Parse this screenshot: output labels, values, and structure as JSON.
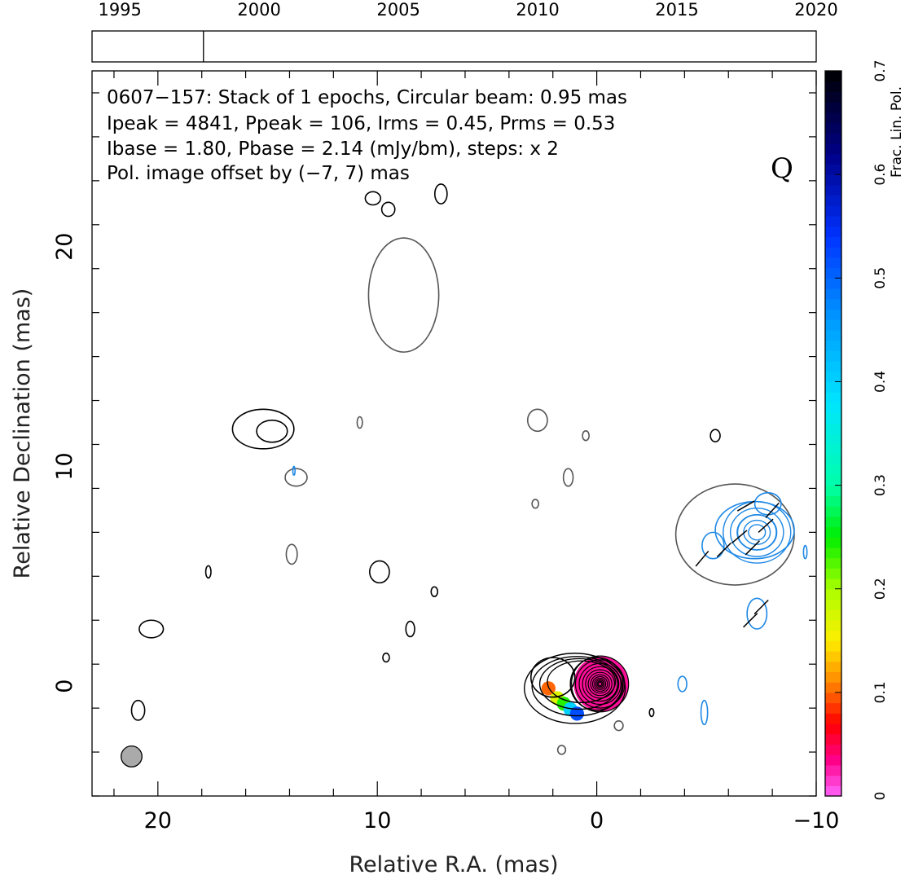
{
  "chart_data": {
    "type": "contour",
    "source": "0607−157",
    "info_lines": [
      "0607−157: Stack of 1 epochs, Circular beam: 0.95 mas",
      "Ipeak = 4841, Ppeak = 106, Irms = 0.45, Prms = 0.53",
      "Ibase = 1.80, Pbase = 2.14 (mJy/bm), steps: x 2"
    ],
    "offset_note": "Pol. image offset by (−7, 7) mas",
    "offset_note_color": "#1e88e5",
    "corner_label": "Q",
    "xlabel": "Relative R.A. (mas)",
    "ylabel": "Relative Declination (mas)",
    "x_range": [
      23,
      -10
    ],
    "y_range": [
      -5,
      28
    ],
    "x_ticks": [
      20,
      10,
      0,
      -10
    ],
    "x_tick_labels": [
      "20",
      "10",
      "0",
      "−10"
    ],
    "y_ticks": [
      0,
      10,
      20
    ],
    "y_tick_labels": [
      "0",
      "10",
      "20"
    ],
    "timeline": {
      "range": [
        1994,
        2020
      ],
      "ticks": [
        1995,
        2000,
        2005,
        2010,
        2015,
        2020
      ],
      "tick_labels": [
        "1995",
        "2000",
        "2005",
        "2010",
        "2015",
        "2020"
      ],
      "epochs": [
        1998
      ]
    },
    "colorbar": {
      "label": "Frac. Lin. Pol.",
      "range": [
        0,
        0.7
      ],
      "ticks": [
        0,
        0.1,
        0.2,
        0.3,
        0.4,
        0.5,
        0.6,
        0.7
      ],
      "tick_labels": [
        "0",
        "0.1",
        "0.2",
        "0.3",
        "0.4",
        "0.5",
        "0.6",
        "0.7"
      ]
    },
    "beam_fwhm_mas": 0.95,
    "core": {
      "x": 0,
      "y": 0
    },
    "colors": {
      "stokes_i": "#000000",
      "stokes_i_faint": "#555555",
      "polarization": "#1e88e5",
      "beam_fill": "#aaaaaa"
    },
    "intensity_components": [
      {
        "x": 0,
        "y": 0.1,
        "rx": 1.2,
        "ry": 1.2
      },
      {
        "x": 2.0,
        "y": 0.4,
        "rx": 1.0,
        "ry": 0.9
      },
      {
        "x": 14.8,
        "y": 11.6,
        "rx": 0.7,
        "ry": 0.5
      },
      {
        "x": 15.2,
        "y": 11.7,
        "rx": 1.4,
        "ry": 0.9
      },
      {
        "x": 20.3,
        "y": 2.6,
        "rx": 0.55,
        "ry": 0.4
      },
      {
        "x": 20.9,
        "y": -1.1,
        "rx": 0.3,
        "ry": 0.45
      },
      {
        "x": 9.9,
        "y": 5.2,
        "rx": 0.45,
        "ry": 0.5
      },
      {
        "x": 8.5,
        "y": 2.6,
        "rx": 0.2,
        "ry": 0.35
      },
      {
        "x": 9.6,
        "y": 1.3,
        "rx": 0.15,
        "ry": 0.2
      },
      {
        "x": 7.4,
        "y": 4.3,
        "rx": 0.15,
        "ry": 0.22
      },
      {
        "x": 17.7,
        "y": 5.2,
        "rx": 0.12,
        "ry": 0.28
      },
      {
        "x": 10.2,
        "y": 22.2,
        "rx": 0.35,
        "ry": 0.3
      },
      {
        "x": 9.5,
        "y": 21.7,
        "rx": 0.3,
        "ry": 0.32
      },
      {
        "x": 7.1,
        "y": 22.4,
        "rx": 0.28,
        "ry": 0.45
      },
      {
        "x": -5.4,
        "y": 11.4,
        "rx": 0.22,
        "ry": 0.28
      },
      {
        "x": -2.5,
        "y": -1.2,
        "rx": 0.1,
        "ry": 0.18
      }
    ],
    "intensity_faint_components": [
      {
        "x": 8.8,
        "y": 17.8,
        "rx": 1.6,
        "ry": 2.6
      },
      {
        "x": 2.7,
        "y": 12.1,
        "rx": 0.45,
        "ry": 0.5
      },
      {
        "x": 1.3,
        "y": 9.5,
        "rx": 0.22,
        "ry": 0.4
      },
      {
        "x": 2.8,
        "y": 8.3,
        "rx": 0.15,
        "ry": 0.2
      },
      {
        "x": 0.5,
        "y": 11.4,
        "rx": 0.15,
        "ry": 0.22
      },
      {
        "x": 10.8,
        "y": 12.0,
        "rx": 0.12,
        "ry": 0.26
      },
      {
        "x": 13.9,
        "y": 6.0,
        "rx": 0.25,
        "ry": 0.45
      },
      {
        "x": 13.7,
        "y": 9.5,
        "rx": 0.5,
        "ry": 0.4
      },
      {
        "x": -6.3,
        "y": 6.9,
        "rx": 2.7,
        "ry": 2.3
      },
      {
        "x": 1.6,
        "y": -2.9,
        "rx": 0.18,
        "ry": 0.2
      },
      {
        "x": -1.0,
        "y": -1.8,
        "rx": 0.2,
        "ry": 0.22
      }
    ],
    "polarization_components": [
      {
        "x": -7.3,
        "y": 7.0,
        "rx": 0.9,
        "ry": 0.8
      },
      {
        "x": -7.2,
        "y": 7.1,
        "rx": 1.8,
        "ry": 1.3
      },
      {
        "x": -7.8,
        "y": 8.3,
        "rx": 0.6,
        "ry": 0.5
      },
      {
        "x": -5.3,
        "y": 6.4,
        "rx": 0.5,
        "ry": 0.6
      },
      {
        "x": -7.3,
        "y": 3.3,
        "rx": 0.45,
        "ry": 0.7
      },
      {
        "x": -4.9,
        "y": -1.2,
        "rx": 0.15,
        "ry": 0.55
      },
      {
        "x": -3.9,
        "y": 0.1,
        "rx": 0.2,
        "ry": 0.35
      },
      {
        "x": -9.5,
        "y": 6.1,
        "rx": 0.08,
        "ry": 0.3
      },
      {
        "x": 13.8,
        "y": 9.8,
        "rx": 0.05,
        "ry": 0.2
      }
    ],
    "frac_pol_region": {
      "x": -0.2,
      "y": 0.1,
      "r": 1.25,
      "value": 0.03
    },
    "frac_pol_patches": [
      {
        "x": 2.2,
        "y": -0.1,
        "value": 0.1
      },
      {
        "x": 1.8,
        "y": -0.55,
        "value": 0.17
      },
      {
        "x": 1.5,
        "y": -0.8,
        "value": 0.24
      },
      {
        "x": 1.2,
        "y": -1.05,
        "value": 0.4
      },
      {
        "x": 0.9,
        "y": -1.25,
        "value": 0.52
      }
    ],
    "evpa_vectors": [
      {
        "x": -5.8,
        "y": 6.2,
        "angle_deg": 45
      },
      {
        "x": -6.5,
        "y": 6.8,
        "angle_deg": 40
      },
      {
        "x": -4.8,
        "y": 5.8,
        "angle_deg": 50
      },
      {
        "x": -7.1,
        "y": 6.3,
        "angle_deg": 45
      },
      {
        "x": -7.7,
        "y": 7.3,
        "angle_deg": 42
      },
      {
        "x": -8.0,
        "y": 8.0,
        "angle_deg": 48
      },
      {
        "x": -6.8,
        "y": 8.2,
        "angle_deg": 30
      },
      {
        "x": -7.5,
        "y": 3.6,
        "angle_deg": 45
      },
      {
        "x": -7.0,
        "y": 3.0,
        "angle_deg": 45
      }
    ]
  }
}
